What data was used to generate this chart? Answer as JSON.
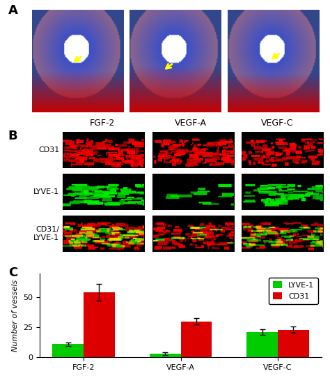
{
  "panel_A_label": "A",
  "panel_B_label": "B",
  "panel_C_label": "C",
  "col_labels": [
    "FGF-2",
    "VEGF-A",
    "VEGF-C"
  ],
  "row_labels_B": [
    "CD31",
    "LYVE-1",
    "CD31/\nLYVE-1"
  ],
  "bar_groups": [
    "FGF-2",
    "VEGF-A",
    "VEGF-C"
  ],
  "lyve1_values": [
    11,
    3,
    21
  ],
  "cd31_values": [
    54,
    30,
    23
  ],
  "lyve1_errors": [
    1.5,
    1.0,
    2.5
  ],
  "cd31_errors": [
    7,
    2.5,
    2.5
  ],
  "lyve1_color": "#00cc00",
  "cd31_color": "#dd0000",
  "ylabel": "Number of vessels",
  "ylim": [
    0,
    70
  ],
  "yticks": [
    0,
    25,
    50
  ],
  "legend_lyve1": "LYVE-1",
  "legend_cd31": "CD31",
  "bar_width": 0.32,
  "background_color": "#ffffff",
  "panel_label_fontsize": 13,
  "axis_label_fontsize": 8,
  "tick_fontsize": 8,
  "legend_fontsize": 8,
  "col_label_fontsize": 9
}
